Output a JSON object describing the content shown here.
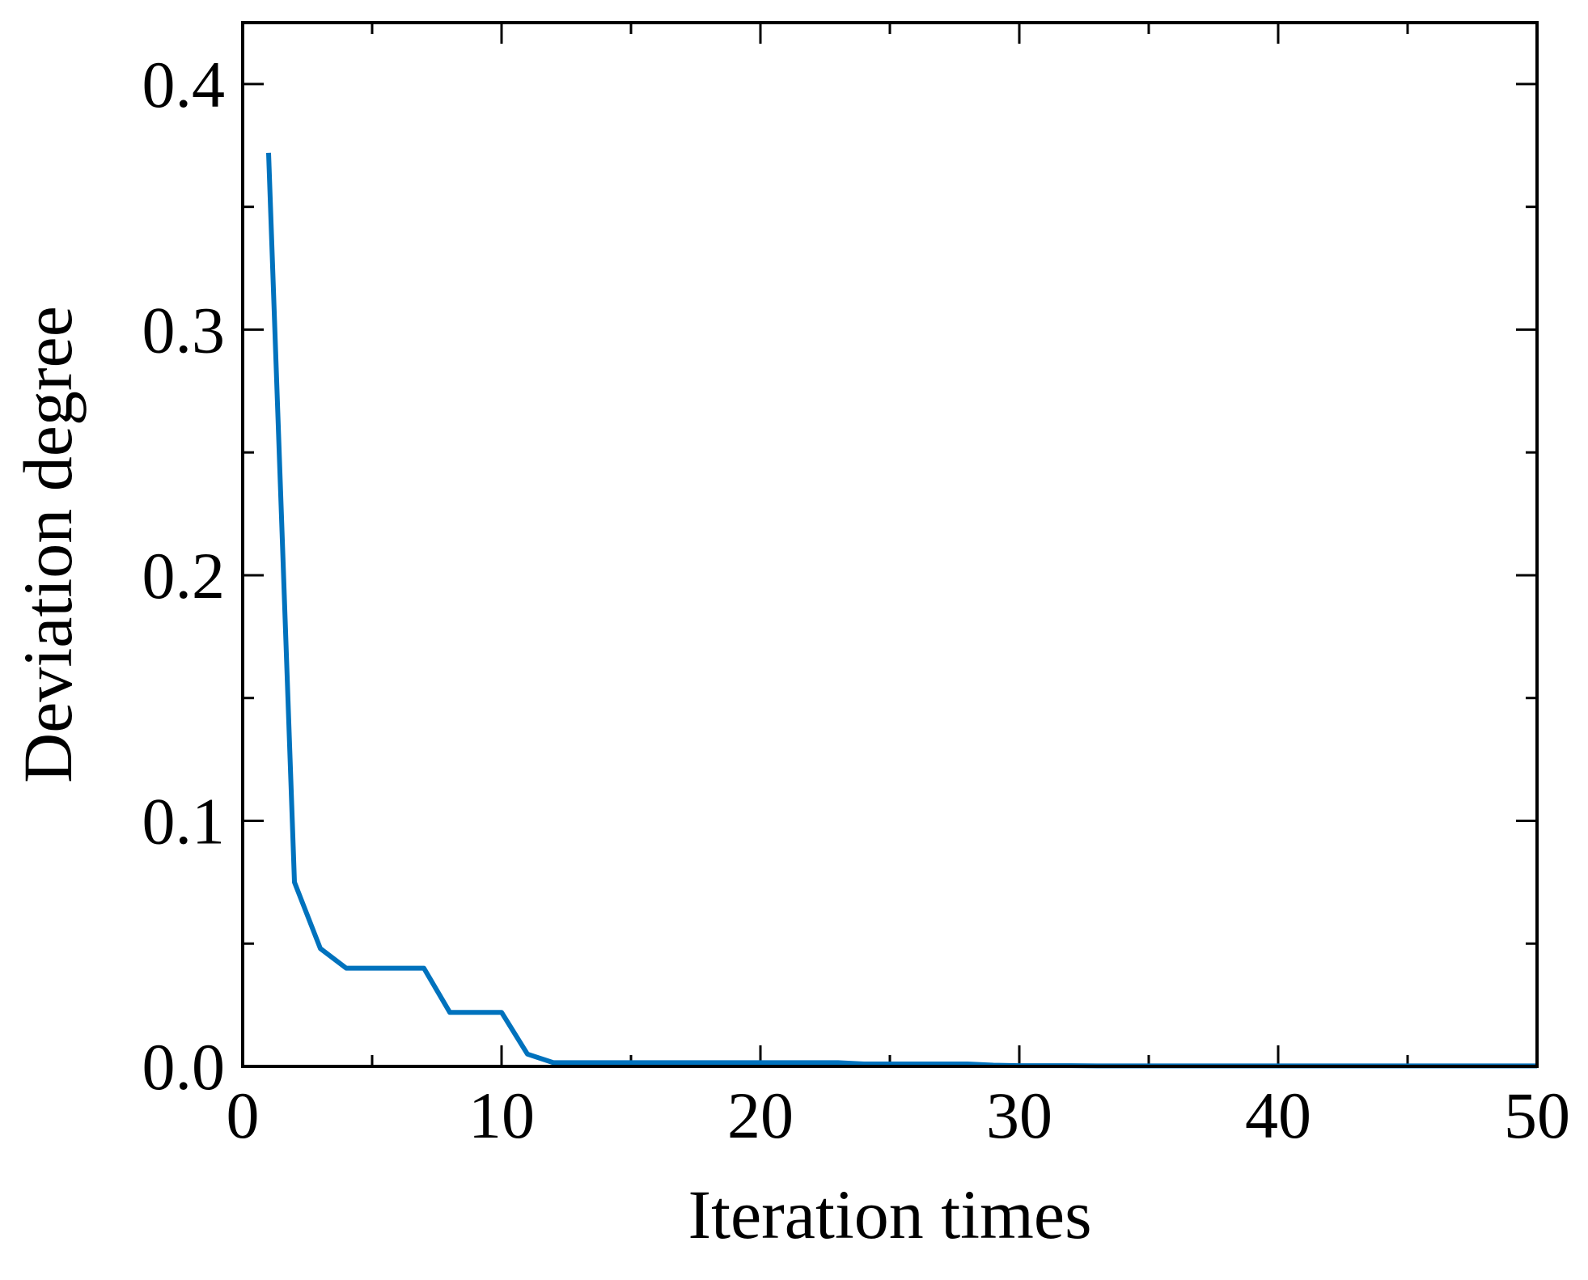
{
  "chart_data": {
    "type": "line",
    "title": "",
    "xlabel": "Iteration times",
    "ylabel": "Deviation degree",
    "xlim": [
      0,
      50
    ],
    "ylim": [
      0,
      0.425
    ],
    "x_ticks": [
      0,
      10,
      20,
      30,
      40,
      50
    ],
    "x_tick_labels": [
      "0",
      "10",
      "20",
      "30",
      "40",
      "50"
    ],
    "y_ticks": [
      0.0,
      0.1,
      0.2,
      0.3,
      0.4
    ],
    "y_tick_labels": [
      "0.0",
      "0.1",
      "0.2",
      "0.3",
      "0.4"
    ],
    "x_minor_step": 5,
    "y_minor_step": 0.05,
    "grid": false,
    "legend": "none",
    "series": [
      {
        "color": "#0072BD",
        "x": [
          1,
          2,
          3,
          4,
          5,
          6,
          7,
          8,
          9,
          10,
          11,
          12,
          13,
          14,
          15,
          16,
          17,
          18,
          19,
          20,
          21,
          22,
          23,
          24,
          25,
          26,
          27,
          28,
          29,
          30,
          31,
          32,
          33,
          34,
          35,
          36,
          37,
          38,
          39,
          40,
          41,
          42,
          43,
          44,
          45,
          46,
          47,
          48,
          49,
          50
        ],
        "y": [
          0.372,
          0.075,
          0.048,
          0.04,
          0.04,
          0.04,
          0.04,
          0.022,
          0.022,
          0.022,
          0.005,
          0.0015,
          0.0015,
          0.0015,
          0.0015,
          0.0015,
          0.0015,
          0.0015,
          0.0015,
          0.0015,
          0.0015,
          0.0015,
          0.0015,
          0.001,
          0.001,
          0.001,
          0.001,
          0.001,
          0.0005,
          0.0003,
          0.0003,
          0.0003,
          0.0002,
          0.0002,
          0.0002,
          0.0002,
          0.0002,
          0.0002,
          0.0002,
          0.0002,
          0.0002,
          0.0002,
          0.0002,
          0.0002,
          0.0002,
          0.0002,
          0.0002,
          0.0002,
          0.0002,
          0.0002
        ]
      }
    ]
  }
}
